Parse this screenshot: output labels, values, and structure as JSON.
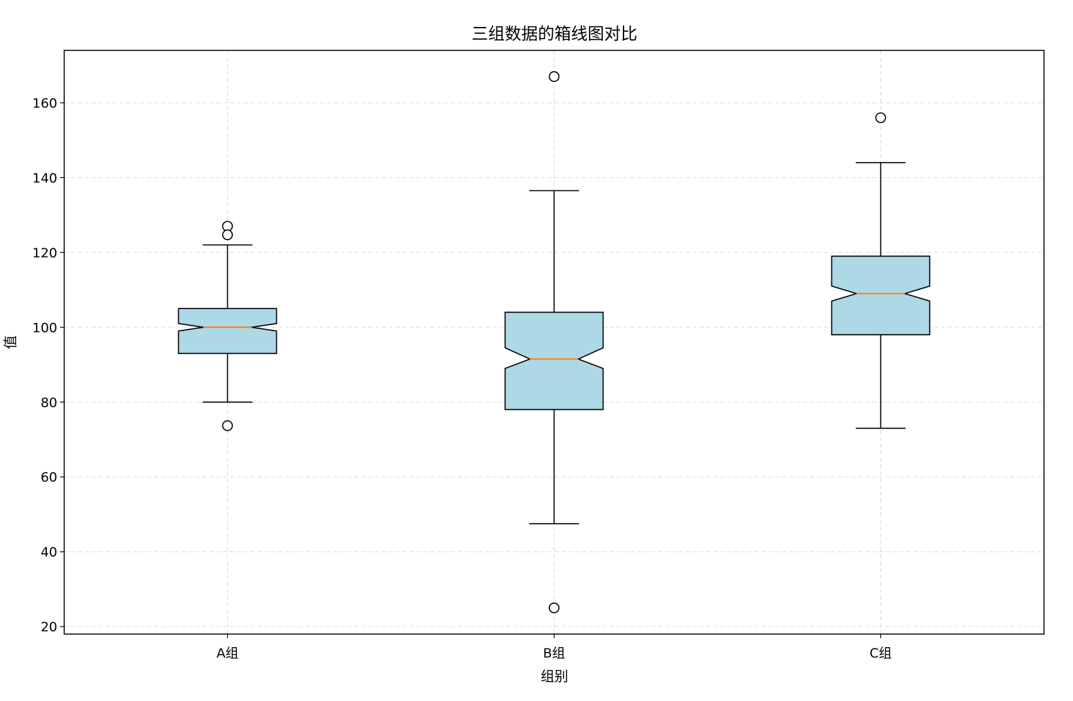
{
  "chart_data": {
    "type": "box",
    "title": "三组数据的箱线图对比",
    "xlabel": "组别",
    "ylabel": "值",
    "ylim": [
      18,
      174
    ],
    "yticks": [
      20,
      40,
      60,
      80,
      100,
      120,
      140,
      160
    ],
    "grid": true,
    "notched": true,
    "colors": {
      "box_fill": "#add8e6",
      "median": "#ff7f0e",
      "grid": "#d9d9d9",
      "edge": "#000000"
    },
    "categories": [
      "A组",
      "B组",
      "C组"
    ],
    "series": [
      {
        "category": "A组",
        "whisker_low": 80,
        "q1": 93,
        "median": 100,
        "q3": 105,
        "whisker_high": 122,
        "notch_low": 99,
        "notch_high": 101,
        "outliers": [
          127,
          124.7,
          73.7
        ]
      },
      {
        "category": "B组",
        "whisker_low": 47.5,
        "q1": 78,
        "median": 91.5,
        "q3": 104,
        "whisker_high": 136.5,
        "notch_low": 89,
        "notch_high": 94.5,
        "outliers": [
          167,
          25
        ]
      },
      {
        "category": "C组",
        "whisker_low": 73,
        "q1": 98,
        "median": 109,
        "q3": 119,
        "whisker_high": 144,
        "notch_low": 107,
        "notch_high": 111,
        "outliers": [
          156
        ]
      }
    ]
  }
}
